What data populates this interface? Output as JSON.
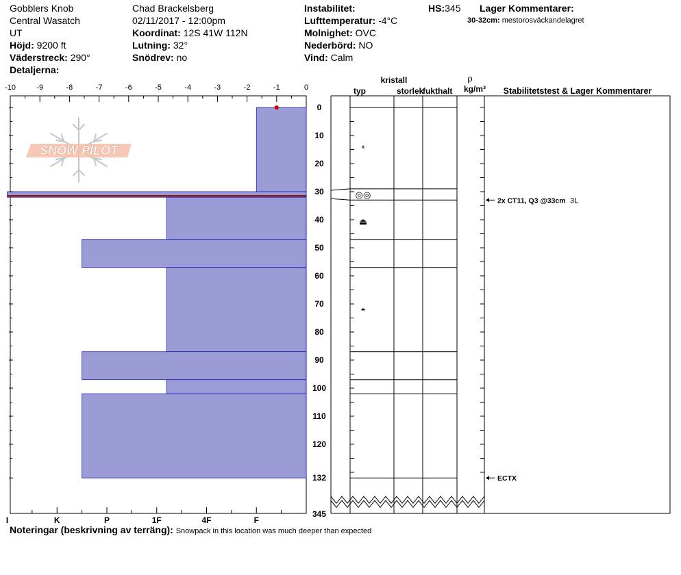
{
  "header": {
    "location": "Gobblers Knob",
    "range": "Central Wasatch",
    "state": "UT",
    "elevation_label": "Höjd:",
    "elevation": "9200 ft",
    "aspect_label": "Väderstreck:",
    "aspect": "290°",
    "details_label": "Detaljerna:",
    "observer": "Chad Brackelsberg",
    "datetime": "02/11/2017 - 12:00pm",
    "coord_label": "Koordinat:",
    "coord": "12S 41W 112N",
    "slope_label": "Lutning:",
    "slope": "32°",
    "drift_label": "Snödrev:",
    "drift": "no",
    "instability_label": "Instabilitet:",
    "airtemp_label": "Lufttemperatur:",
    "airtemp": "-4°C",
    "cloud_label": "Molnighet:",
    "cloud": "OVC",
    "precip_label": "Nederbörd:",
    "precip": "NO",
    "wind_label": "Vind:",
    "wind": "Calm",
    "hs_label": "HS:",
    "hs": "345",
    "layer_comments_label": "Lager Kommentarer:",
    "layer_comment_range": "30-32cm:",
    "layer_comment_text": "mestorosväckandelagret"
  },
  "columns": {
    "crystal": "kristall",
    "type": "typ",
    "size": "storlek",
    "moisture": "fukthalt",
    "rho": "ρ",
    "density_unit": "kg/m³",
    "stability": "Stabilitetstest & Lager Kommentarer"
  },
  "notes": {
    "label": "Noteringar (beskrivning av terräng):",
    "text": "Snowpack in this location was much deeper than expected"
  },
  "logo_text": "SNOW PILOT",
  "colors": {
    "hardness_fill": "#9b9bd6",
    "hardness_edge": "#1f1fbf",
    "weak_layer": "#8b1a1a",
    "temp_point": "#cc0000"
  },
  "chart_data": {
    "type": "snow_profile",
    "temperature_axis": {
      "ticks": [
        "-10",
        "-9",
        "-8",
        "-7",
        "-6",
        "-5",
        "-4",
        "-3",
        "-2",
        "-1",
        "0"
      ],
      "range": [
        -10,
        0
      ]
    },
    "hardness_axis": {
      "ticks": [
        "I",
        "K",
        "P",
        "1F",
        "4F",
        "F"
      ]
    },
    "depth_axis": {
      "ticks": [
        "0",
        "10",
        "20",
        "30",
        "40",
        "50",
        "60",
        "70",
        "80",
        "90",
        "100",
        "110",
        "120",
        "132",
        "345"
      ],
      "range_cm": [
        0,
        132
      ],
      "break_cm": 132,
      "total_cm": 345
    },
    "temperature_points": [
      {
        "depth": 0,
        "temp": -1
      }
    ],
    "hardness_layers": [
      {
        "top": 0,
        "bottom": 30,
        "hardness": 1
      },
      {
        "top": 30,
        "bottom": 32,
        "hardness": 6
      },
      {
        "top": 32,
        "bottom": 47,
        "hardness": 2.8
      },
      {
        "top": 47,
        "bottom": 57,
        "hardness": 4.5
      },
      {
        "top": 57,
        "bottom": 87,
        "hardness": 2.8
      },
      {
        "top": 87,
        "bottom": 97,
        "hardness": 4.5
      },
      {
        "top": 97,
        "bottom": 102,
        "hardness": 2.8
      },
      {
        "top": 102,
        "bottom": 132,
        "hardness": 4.5
      }
    ],
    "weak_layer": {
      "top": 30,
      "bottom": 32
    },
    "layer_boundaries": [
      0,
      29,
      33,
      47,
      57,
      87,
      97,
      102,
      132
    ],
    "crystal_symbols": [
      {
        "depth": 14.5,
        "symbol": "*"
      },
      {
        "depth": 31,
        "symbol": "◎◎"
      },
      {
        "depth": 40.5,
        "symbol": "⏏"
      },
      {
        "depth": 72,
        "symbol": "◓"
      }
    ],
    "stability_tests": [
      {
        "depth": 33,
        "label": "2x CT11, Q3 @33cm",
        "extra": "3L"
      },
      {
        "depth": 132,
        "label": "ECTX",
        "extra": ""
      }
    ]
  }
}
